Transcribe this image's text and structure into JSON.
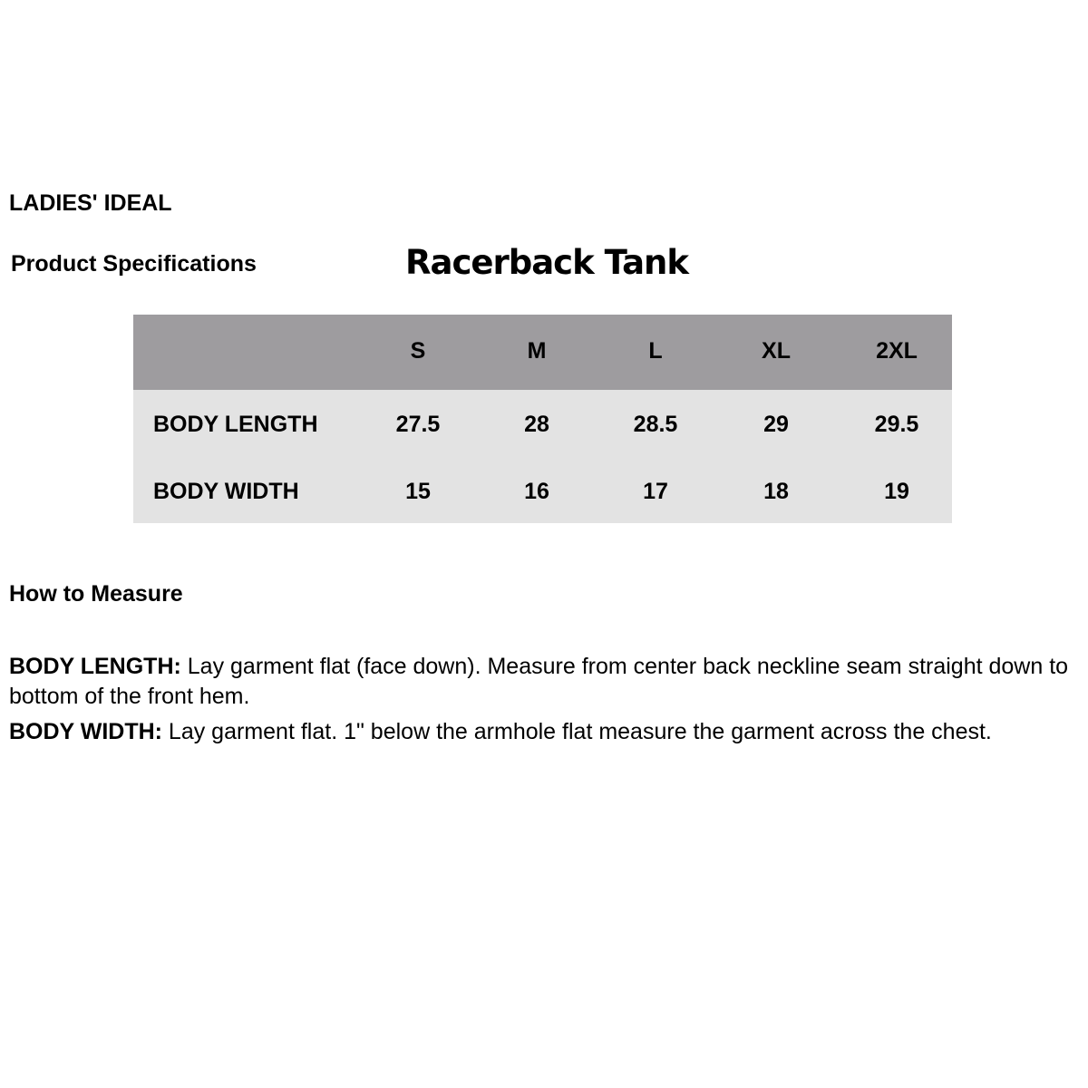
{
  "brand": "LADIES' IDEAL",
  "section_label": "Product Specifications",
  "product_title": "Racerback Tank",
  "table": {
    "sizes": [
      "S",
      "M",
      "L",
      "XL",
      "2XL"
    ],
    "rows": [
      {
        "label": "BODY LENGTH",
        "values": [
          "27.5",
          "28",
          "28.5",
          "29",
          "29.5"
        ]
      },
      {
        "label": "BODY WIDTH",
        "values": [
          "15",
          "16",
          "17",
          "18",
          "19"
        ]
      }
    ]
  },
  "colors": {
    "header_bg": "#9e9c9f",
    "body_bg": "#e3e3e3"
  },
  "how_to": {
    "heading": "How to Measure",
    "items": [
      {
        "term": "BODY LENGTH:",
        "text": " Lay garment flat (face down). Measure from center back neckline seam straight down to bottom of the front hem."
      },
      {
        "term": "BODY WIDTH:",
        "text": " Lay garment flat. 1\" below the armhole flat measure the garment across the chest."
      }
    ]
  }
}
